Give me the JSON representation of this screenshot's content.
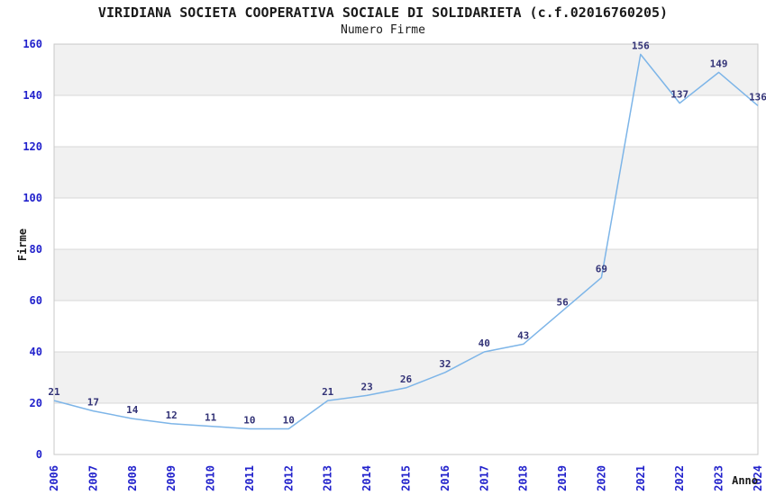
{
  "chart_data": {
    "type": "line",
    "title": "VIRIDIANA SOCIETA COOPERATIVA SOCIALE DI SOLIDARIETA (c.f.02016760205)",
    "subtitle": "Numero Firme",
    "xlabel": "Anno",
    "ylabel": "Firme",
    "categories": [
      "2006",
      "2007",
      "2008",
      "2009",
      "2010",
      "2011",
      "2012",
      "2013",
      "2014",
      "2015",
      "2016",
      "2017",
      "2018",
      "2019",
      "2020",
      "2021",
      "2022",
      "2023",
      "2024"
    ],
    "series": [
      {
        "name": "Numero Firme",
        "values": [
          21,
          17,
          14,
          12,
          11,
          10,
          10,
          21,
          23,
          26,
          32,
          40,
          43,
          56,
          69,
          156,
          137,
          149,
          136
        ]
      }
    ],
    "ylim": [
      0,
      160
    ],
    "ytick_step": 20,
    "yticks": [
      0,
      20,
      40,
      60,
      80,
      100,
      120,
      140,
      160
    ],
    "xtick_rotation": -90,
    "grid": "horizontal",
    "banded_background": true,
    "point_labels": true,
    "legend": "none",
    "colors": {
      "line": "#7db5e8",
      "tick_label": "#2222cc",
      "point_label": "#333377",
      "band_fill": "#f1f1f1",
      "grid_line": "#d8d8d8",
      "plot_border": "#c8c8c8",
      "text": "#1a1a1a",
      "background": "#ffffff"
    }
  }
}
